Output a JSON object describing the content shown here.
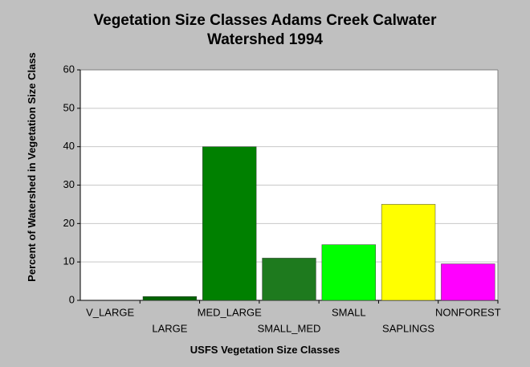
{
  "chart_data": {
    "type": "bar",
    "title": "Vegetation Size Classes Adams Creek Calwater Watershed 1994",
    "x_label": "USFS Vegetation Size Classes",
    "y_label": "Percent of Watershed in Vegetation Size Class",
    "categories": [
      "V_LARGE",
      "LARGE",
      "MED_LARGE",
      "SMALL_MED",
      "SMALL",
      "SAPLINGS",
      "NONFOREST"
    ],
    "values": [
      0,
      1,
      40,
      11,
      14.5,
      25,
      9.5
    ],
    "colors": [
      "#006400",
      "#006400",
      "#008000",
      "#1e7a1e",
      "#00ff00",
      "#ffff00",
      "#ff00ff"
    ],
    "ylim": [
      0,
      60
    ],
    "yticks": [
      0,
      10,
      20,
      30,
      40,
      50,
      60
    ],
    "grid": true
  }
}
